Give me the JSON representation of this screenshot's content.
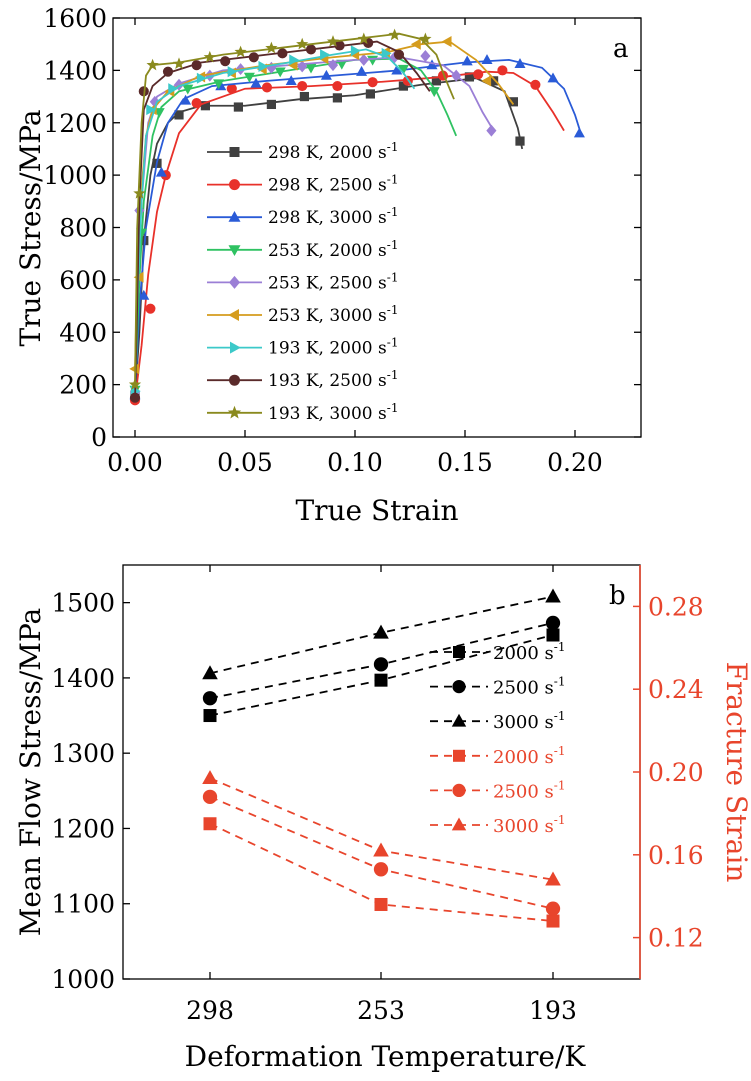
{
  "chart_data": [
    {
      "type": "line",
      "panel_label": "a",
      "xlabel": "True Strain",
      "ylabel": "True Stress/MPa",
      "xlim": [
        -0.01,
        0.23
      ],
      "ylim": [
        0,
        1600
      ],
      "xticks": [
        0.0,
        0.05,
        0.1,
        0.15,
        0.2
      ],
      "xtick_labels": [
        "0.00",
        "0.05",
        "0.10",
        "0.15",
        "0.20"
      ],
      "yticks": [
        0,
        200,
        400,
        600,
        800,
        1000,
        1200,
        1400,
        1600
      ],
      "ytick_labels": [
        "0",
        "200",
        "400",
        "600",
        "800",
        "1000",
        "1200",
        "1400",
        "1600"
      ],
      "legend_position": "center-left",
      "series": [
        {
          "name": "298 K, 2000 s",
          "sup": "-1",
          "color": "#404040",
          "marker": "square",
          "x": [
            0.0,
            0.002,
            0.004,
            0.007,
            0.01,
            0.015,
            0.02,
            0.03,
            0.05,
            0.075,
            0.1,
            0.13,
            0.155,
            0.168,
            0.174,
            0.176
          ],
          "y": [
            150,
            400,
            750,
            1000,
            1120,
            1200,
            1240,
            1265,
            1265,
            1290,
            1305,
            1345,
            1370,
            1320,
            1180,
            1100
          ],
          "markers_x": [
            0.0,
            0.004,
            0.01,
            0.02,
            0.032,
            0.047,
            0.062,
            0.077,
            0.092,
            0.107,
            0.122,
            0.137,
            0.152,
            0.163,
            0.172,
            0.175
          ],
          "markers_y": [
            160,
            750,
            1045,
            1230,
            1265,
            1260,
            1270,
            1300,
            1295,
            1310,
            1340,
            1360,
            1375,
            1360,
            1280,
            1130
          ]
        },
        {
          "name": "298 K, 2500 s",
          "sup": "-1",
          "color": "#e8312a",
          "marker": "circle",
          "x": [
            0.0,
            0.003,
            0.006,
            0.01,
            0.014,
            0.02,
            0.03,
            0.05,
            0.08,
            0.11,
            0.14,
            0.16,
            0.172,
            0.182,
            0.19,
            0.195
          ],
          "y": [
            140,
            350,
            620,
            860,
            1000,
            1160,
            1270,
            1330,
            1340,
            1355,
            1375,
            1395,
            1390,
            1340,
            1240,
            1170
          ],
          "markers_x": [
            0.0,
            0.007,
            0.014,
            0.028,
            0.044,
            0.06,
            0.076,
            0.092,
            0.108,
            0.124,
            0.14,
            0.156,
            0.167,
            0.182
          ],
          "markers_y": [
            140,
            490,
            1000,
            1275,
            1330,
            1335,
            1340,
            1340,
            1355,
            1360,
            1380,
            1385,
            1400,
            1345
          ]
        },
        {
          "name": "298 K, 3000 s",
          "sup": "-1",
          "color": "#2a5bd7",
          "marker": "triangle-up",
          "x": [
            0.0,
            0.002,
            0.005,
            0.01,
            0.015,
            0.022,
            0.035,
            0.06,
            0.09,
            0.12,
            0.15,
            0.17,
            0.185,
            0.195,
            0.2,
            0.203
          ],
          "y": [
            160,
            500,
            800,
            1050,
            1200,
            1290,
            1340,
            1360,
            1380,
            1400,
            1430,
            1440,
            1410,
            1330,
            1230,
            1150
          ],
          "markers_x": [
            0.0,
            0.004,
            0.012,
            0.023,
            0.039,
            0.055,
            0.071,
            0.087,
            0.103,
            0.119,
            0.135,
            0.151,
            0.16,
            0.175,
            0.19,
            0.202
          ],
          "markers_y": [
            160,
            540,
            1010,
            1285,
            1340,
            1350,
            1360,
            1380,
            1395,
            1400,
            1420,
            1435,
            1440,
            1425,
            1370,
            1160
          ]
        },
        {
          "name": "253 K, 2000 s",
          "sup": "-1",
          "color": "#2fc262",
          "marker": "triangle-down",
          "x": [
            0.0,
            0.002,
            0.004,
            0.008,
            0.012,
            0.02,
            0.04,
            0.07,
            0.1,
            0.12,
            0.13,
            0.137,
            0.142,
            0.146
          ],
          "y": [
            180,
            600,
            900,
            1150,
            1260,
            1320,
            1360,
            1400,
            1440,
            1445,
            1400,
            1320,
            1230,
            1150
          ],
          "markers_x": [
            0.0,
            0.003,
            0.011,
            0.024,
            0.038,
            0.052,
            0.066,
            0.08,
            0.094,
            0.108,
            0.122,
            0.136
          ],
          "markers_y": [
            180,
            780,
            1240,
            1330,
            1350,
            1375,
            1395,
            1410,
            1425,
            1440,
            1405,
            1320
          ]
        },
        {
          "name": "253 K, 2500 s",
          "sup": "-1",
          "color": "#9b7fd6",
          "marker": "diamond",
          "x": [
            0.0,
            0.001,
            0.003,
            0.006,
            0.01,
            0.02,
            0.04,
            0.07,
            0.1,
            0.12,
            0.14,
            0.152,
            0.158,
            0.163
          ],
          "y": [
            170,
            600,
            900,
            1200,
            1300,
            1350,
            1400,
            1420,
            1440,
            1450,
            1420,
            1340,
            1240,
            1170
          ],
          "markers_x": [
            0.0,
            0.002,
            0.009,
            0.02,
            0.034,
            0.048,
            0.062,
            0.076,
            0.09,
            0.104,
            0.118,
            0.132,
            0.146,
            0.162
          ],
          "markers_y": [
            170,
            865,
            1280,
            1345,
            1380,
            1405,
            1410,
            1415,
            1420,
            1440,
            1450,
            1455,
            1380,
            1170
          ]
        },
        {
          "name": "253 K, 3000 s",
          "sup": "-1",
          "color": "#d59c1d",
          "marker": "triangle-left",
          "x": [
            0.0,
            0.001,
            0.003,
            0.005,
            0.008,
            0.015,
            0.03,
            0.06,
            0.09,
            0.115,
            0.13,
            0.143,
            0.155,
            0.165,
            0.172
          ],
          "y": [
            260,
            600,
            950,
            1150,
            1250,
            1320,
            1380,
            1420,
            1450,
            1470,
            1500,
            1510,
            1440,
            1350,
            1270
          ],
          "markers_x": [
            0.0,
            0.002,
            0.008,
            0.016,
            0.03,
            0.044,
            0.058,
            0.072,
            0.086,
            0.1,
            0.114,
            0.128,
            0.142,
            0.16
          ],
          "markers_y": [
            260,
            610,
            1250,
            1320,
            1375,
            1390,
            1405,
            1420,
            1445,
            1460,
            1470,
            1500,
            1510,
            1360
          ]
        },
        {
          "name": "193 K, 2000 s",
          "sup": "-1",
          "color": "#3cc9c9",
          "marker": "triangle-right",
          "x": [
            0.0,
            0.001,
            0.003,
            0.005,
            0.01,
            0.02,
            0.04,
            0.07,
            0.09,
            0.105,
            0.115,
            0.122,
            0.127
          ],
          "y": [
            160,
            500,
            900,
            1150,
            1280,
            1340,
            1390,
            1430,
            1460,
            1480,
            1450,
            1390,
            1330
          ],
          "markers_x": [
            0.0,
            0.007,
            0.017,
            0.03,
            0.044,
            0.058,
            0.072,
            0.086,
            0.1,
            0.114
          ],
          "markers_y": [
            175,
            1250,
            1330,
            1370,
            1395,
            1415,
            1440,
            1460,
            1475,
            1465
          ]
        },
        {
          "name": "193 K, 2500 s",
          "sup": "-1",
          "color": "#5a2a2a",
          "marker": "circle",
          "x": [
            0.0,
            0.001,
            0.002,
            0.004,
            0.008,
            0.015,
            0.03,
            0.06,
            0.09,
            0.11,
            0.12,
            0.128,
            0.134
          ],
          "y": [
            140,
            500,
            900,
            1250,
            1340,
            1390,
            1430,
            1460,
            1490,
            1510,
            1470,
            1390,
            1320
          ],
          "markers_x": [
            0.0,
            0.004,
            0.015,
            0.028,
            0.041,
            0.054,
            0.067,
            0.08,
            0.093,
            0.106,
            0.12
          ],
          "markers_y": [
            150,
            1320,
            1395,
            1420,
            1435,
            1450,
            1465,
            1480,
            1495,
            1505,
            1460
          ]
        },
        {
          "name": "193 K, 3000 s",
          "sup": "-1",
          "color": "#8a8a1e",
          "marker": "star",
          "x": [
            0.0,
            0.001,
            0.003,
            0.005,
            0.008,
            0.02,
            0.04,
            0.07,
            0.1,
            0.12,
            0.13,
            0.137,
            0.141,
            0.145
          ],
          "y": [
            200,
            800,
            1200,
            1380,
            1420,
            1430,
            1460,
            1490,
            1520,
            1540,
            1520,
            1460,
            1370,
            1290
          ],
          "markers_x": [
            0.0,
            0.002,
            0.008,
            0.02,
            0.034,
            0.048,
            0.062,
            0.076,
            0.09,
            0.104,
            0.118,
            0.132
          ],
          "markers_y": [
            200,
            930,
            1420,
            1425,
            1450,
            1470,
            1485,
            1500,
            1510,
            1520,
            1535,
            1520
          ]
        }
      ]
    },
    {
      "type": "line",
      "panel_label": "b",
      "xlabel": "Deformation Temperature/K",
      "ylabel": "Mean Flow Stress/MPa",
      "ylabel_right": "Fracture Strain",
      "categories": [
        "298",
        "253",
        "193"
      ],
      "ylim": [
        1000,
        1550
      ],
      "yticks": [
        1000,
        1100,
        1200,
        1300,
        1400,
        1500
      ],
      "ytick_labels": [
        "1000",
        "1100",
        "1200",
        "1300",
        "1400",
        "1500"
      ],
      "ylim_right": [
        0.1,
        0.3
      ],
      "yticks_right": [
        0.12,
        0.16,
        0.2,
        0.24,
        0.28
      ],
      "ytick_labels_right": [
        "0.12",
        "0.16",
        "0.20",
        "0.24",
        "0.28"
      ],
      "line_style": "dashed",
      "legend_position": "right",
      "series": [
        {
          "name": "2000 s",
          "sup": "-1",
          "axis": "left",
          "color": "#000000",
          "marker": "square",
          "values": [
            1350,
            1397,
            1457
          ]
        },
        {
          "name": "2500 s",
          "sup": "-1",
          "axis": "left",
          "color": "#000000",
          "marker": "circle",
          "values": [
            1373,
            1418,
            1473
          ]
        },
        {
          "name": "3000 s",
          "sup": "-1",
          "axis": "left",
          "color": "#000000",
          "marker": "triangle-up",
          "values": [
            1406,
            1460,
            1508
          ]
        },
        {
          "name": "2000 s",
          "sup": "-1",
          "axis": "right",
          "color": "#e8452c",
          "marker": "square",
          "values": [
            0.175,
            0.136,
            0.128
          ]
        },
        {
          "name": "2500 s",
          "sup": "-1",
          "axis": "right",
          "color": "#e8452c",
          "marker": "circle",
          "values": [
            0.188,
            0.153,
            0.134
          ]
        },
        {
          "name": "3000 s",
          "sup": "-1",
          "axis": "right",
          "color": "#e8452c",
          "marker": "triangle-up",
          "values": [
            0.197,
            0.162,
            0.148
          ]
        }
      ]
    }
  ]
}
